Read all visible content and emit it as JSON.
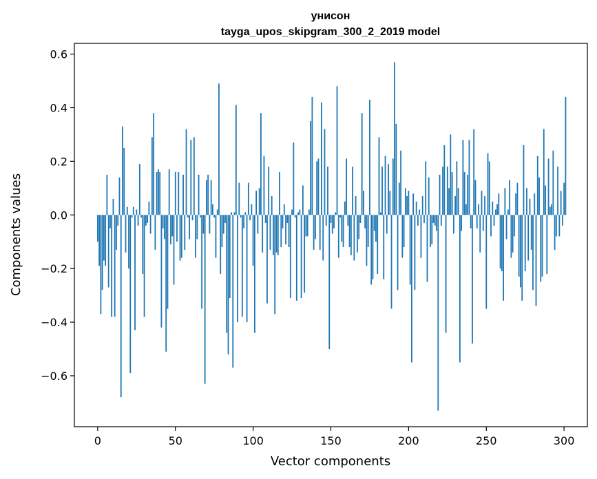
{
  "chart_data": {
    "type": "bar",
    "title": "унисон",
    "subtitle": "tayga_upos_skipgram_300_2_2019 model",
    "xlabel": "Vector components",
    "ylabel": "Components values",
    "xlim": [
      -15,
      315
    ],
    "ylim": [
      -0.79,
      0.64
    ],
    "xticks": [
      0,
      50,
      100,
      150,
      200,
      250,
      300
    ],
    "xtick_labels": [
      "0",
      "50",
      "100",
      "150",
      "200",
      "250",
      "300"
    ],
    "yticks": [
      -0.6,
      -0.4,
      -0.2,
      0.0,
      0.2,
      0.4,
      0.6
    ],
    "ytick_labels": [
      "−0.6",
      "−0.4",
      "−0.2",
      "0.0",
      "0.2",
      "0.4",
      "0.6"
    ],
    "bar_color": "#1f77b4",
    "grid": false,
    "values": [
      -0.1,
      -0.19,
      -0.37,
      -0.28,
      -0.17,
      -0.19,
      0.15,
      -0.27,
      -0.05,
      -0.38,
      0.06,
      -0.38,
      -0.13,
      -0.04,
      0.14,
      -0.68,
      0.33,
      0.25,
      -0.14,
      0.03,
      -0.2,
      -0.59,
      -0.01,
      0.03,
      -0.43,
      0.02,
      -0.04,
      0.19,
      -0.01,
      -0.22,
      -0.38,
      -0.04,
      -0.03,
      0.05,
      -0.07,
      0.29,
      0.38,
      -0.13,
      0.16,
      0.17,
      0.16,
      -0.42,
      -0.05,
      -0.09,
      -0.51,
      -0.35,
      0.17,
      -0.11,
      -0.08,
      -0.26,
      0.16,
      -0.1,
      0.16,
      -0.17,
      -0.16,
      0.15,
      -0.13,
      0.32,
      -0.01,
      -0.09,
      0.28,
      -0.02,
      0.29,
      -0.16,
      -0.09,
      0.15,
      -0.01,
      -0.35,
      -0.07,
      -0.63,
      0.13,
      0.15,
      -0.07,
      0.13,
      0.04,
      -0.01,
      -0.16,
      0.02,
      0.49,
      -0.22,
      -0.12,
      -0.07,
      -0.03,
      -0.44,
      -0.52,
      -0.31,
      0.01,
      -0.57,
      0.01,
      0.41,
      -0.4,
      0.12,
      -0.01,
      -0.38,
      -0.05,
      0.01,
      -0.4,
      0.12,
      -0.02,
      0.04,
      -0.19,
      -0.44,
      0.09,
      -0.07,
      0.1,
      0.38,
      -0.14,
      0.22,
      -0.03,
      -0.33,
      0.18,
      -0.13,
      0.07,
      -0.15,
      -0.37,
      -0.14,
      -0.15,
      0.16,
      -0.12,
      -0.05,
      0.04,
      -0.11,
      -0.03,
      -0.12,
      -0.31,
      0.02,
      0.27,
      -0.01,
      -0.32,
      0.01,
      0.02,
      -0.31,
      0.11,
      -0.29,
      -0.08,
      -0.08,
      0.02,
      0.35,
      0.44,
      -0.13,
      -0.09,
      0.2,
      0.21,
      -0.13,
      0.42,
      -0.17,
      0.32,
      -0.04,
      0.18,
      -0.5,
      -0.03,
      -0.07,
      -0.05,
      0.01,
      0.48,
      -0.16,
      -0.01,
      -0.1,
      -0.12,
      0.05,
      0.21,
      -0.04,
      -0.12,
      -0.15,
      0.18,
      -0.17,
      0.07,
      -0.14,
      -0.09,
      -0.03,
      0.38,
      0.09,
      -0.05,
      -0.19,
      -0.12,
      0.43,
      -0.26,
      -0.24,
      -0.06,
      -0.1,
      -0.22,
      0.29,
      0.01,
      0.18,
      -0.24,
      0.22,
      -0.07,
      0.19,
      0.09,
      -0.35,
      0.21,
      0.57,
      0.34,
      -0.28,
      0.12,
      0.24,
      -0.16,
      -0.12,
      0.1,
      0.07,
      0.09,
      -0.26,
      -0.55,
      0.08,
      -0.28,
      0.05,
      -0.04,
      0.02,
      -0.16,
      0.07,
      -0.03,
      0.2,
      -0.25,
      0.14,
      -0.12,
      -0.11,
      -0.03,
      -0.04,
      -0.06,
      -0.73,
      0.15,
      -0.04,
      0.18,
      0.26,
      -0.44,
      0.18,
      0.1,
      0.3,
      0.16,
      -0.07,
      0.07,
      0.2,
      0.1,
      -0.55,
      -0.06,
      0.28,
      0.16,
      0.04,
      0.15,
      0.28,
      -0.05,
      -0.48,
      0.32,
      0.13,
      -0.05,
      0.04,
      -0.14,
      0.09,
      -0.06,
      0.07,
      -0.35,
      0.23,
      0.2,
      -0.08,
      0.05,
      -0.04,
      0.02,
      0.04,
      0.08,
      -0.2,
      -0.21,
      -0.32,
      0.1,
      -0.09,
      0.02,
      0.13,
      -0.16,
      -0.14,
      -0.08,
      0.08,
      0.12,
      -0.23,
      -0.27,
      -0.32,
      0.26,
      -0.21,
      0.1,
      -0.17,
      0.06,
      -0.13,
      -0.28,
      0.08,
      -0.34,
      0.22,
      0.14,
      -0.25,
      -0.23,
      0.32,
      0.11,
      -0.22,
      0.21,
      0.03,
      0.04,
      0.24,
      -0.13,
      -0.08,
      0.18,
      -0.08,
      0.09,
      -0.04,
      0.12,
      0.44
    ]
  }
}
